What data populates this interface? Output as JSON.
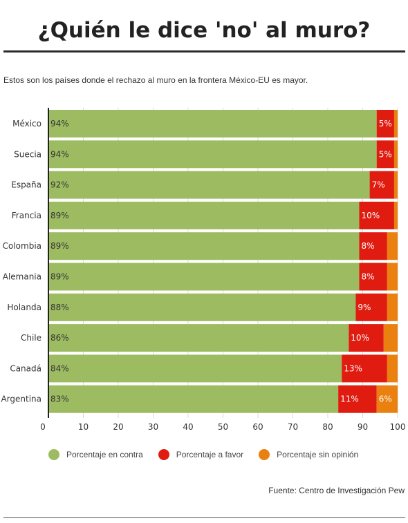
{
  "title": "¿Quién le dice 'no' al muro?",
  "subtitle": "Estos son los países donde el rechazo al muro en la frontera México-EU es mayor.",
  "source": "Fuente: Centro de Investigación Pew",
  "colors": {
    "contra": "#9dbb61",
    "favor": "#e01b10",
    "sin_opinion": "#e98010"
  },
  "chart_data": {
    "type": "bar",
    "orientation": "horizontal",
    "stacked": true,
    "categories": [
      "México",
      "Suecia",
      "España",
      "Francia",
      "Colombia",
      "Alemania",
      "Holanda",
      "Chile",
      "Canadá",
      "Argentina"
    ],
    "series": [
      {
        "name": "Porcentaje en contra",
        "values": [
          94,
          94,
          92,
          89,
          89,
          89,
          88,
          86,
          84,
          83
        ],
        "labels": [
          "94%",
          "94%",
          "92%",
          "89%",
          "89%",
          "89%",
          "88%",
          "86%",
          "84%",
          "83%"
        ]
      },
      {
        "name": "Porcentaje a favor",
        "values": [
          5,
          5,
          7,
          10,
          8,
          8,
          9,
          10,
          13,
          11
        ],
        "labels": [
          "5%",
          "5%",
          "7%",
          "10%",
          "8%",
          "8%",
          "9%",
          "10%",
          "13%",
          "11%"
        ]
      },
      {
        "name": "Porcentaje sin opinión",
        "values": [
          1,
          1,
          1,
          1,
          3,
          3,
          3,
          4,
          3,
          6
        ],
        "labels": [
          "",
          "",
          "",
          "",
          "",
          "",
          "",
          "",
          "",
          "6%"
        ]
      }
    ],
    "xlim": [
      0,
      100
    ],
    "xticks": [
      0,
      10,
      20,
      30,
      40,
      50,
      60,
      70,
      80,
      90,
      100
    ],
    "grid": true,
    "legend": "bottom"
  }
}
